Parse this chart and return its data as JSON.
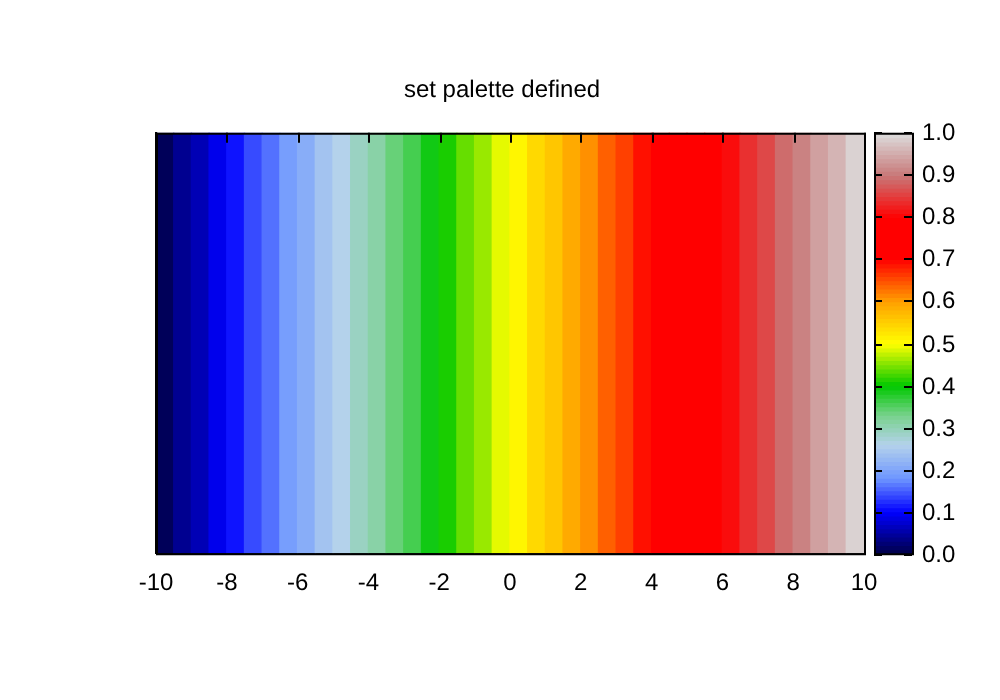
{
  "chart_data": {
    "type": "heatmap",
    "title": "set palette defined",
    "x": [
      -9.75,
      -9.25,
      -8.75,
      -8.25,
      -7.75,
      -7.25,
      -6.75,
      -6.25,
      -5.75,
      -5.25,
      -4.75,
      -4.25,
      -3.75,
      -3.25,
      -2.75,
      -2.25,
      -1.75,
      -1.25,
      -0.75,
      -0.25,
      0.25,
      0.75,
      1.25,
      1.75,
      2.25,
      2.75,
      3.25,
      3.75,
      4.25,
      4.75,
      5.25,
      5.75,
      6.25,
      6.75,
      7.25,
      7.75,
      8.25,
      8.75,
      9.25,
      9.75
    ],
    "y_categories": [
      null
    ],
    "cells": [
      [
        0.01,
        0.04,
        0.06,
        0.09,
        0.11,
        0.14,
        0.16,
        0.19,
        0.21,
        0.24,
        0.26,
        0.29,
        0.31,
        0.34,
        0.36,
        0.39,
        0.41,
        0.44,
        0.46,
        0.49,
        0.51,
        0.54,
        0.56,
        0.59,
        0.61,
        0.64,
        0.66,
        0.69,
        0.71,
        0.74,
        0.76,
        0.79,
        0.81,
        0.84,
        0.86,
        0.89,
        0.91,
        0.94,
        0.96,
        0.99
      ]
    ],
    "xlim": [
      -10,
      10
    ],
    "xticks": [
      -10,
      -8,
      -6,
      -4,
      -2,
      0,
      2,
      4,
      6,
      8,
      10
    ],
    "clim": [
      0,
      1
    ],
    "cticks": [
      {
        "value": 0,
        "label": "0.0"
      },
      {
        "value": 0.1,
        "label": "0.1"
      },
      {
        "value": 0.2,
        "label": "0.2"
      },
      {
        "value": 0.3,
        "label": "0.3"
      },
      {
        "value": 0.4,
        "label": "0.4"
      },
      {
        "value": 0.5,
        "label": "0.5"
      },
      {
        "value": 0.6,
        "label": "0.6"
      },
      {
        "value": 0.7,
        "label": "0.7"
      },
      {
        "value": 0.8,
        "label": "0.8"
      },
      {
        "value": 0.9,
        "label": "0.9"
      },
      {
        "value": 1,
        "label": "1.0"
      }
    ],
    "tick_labels": "x",
    "grid": false
  }
}
